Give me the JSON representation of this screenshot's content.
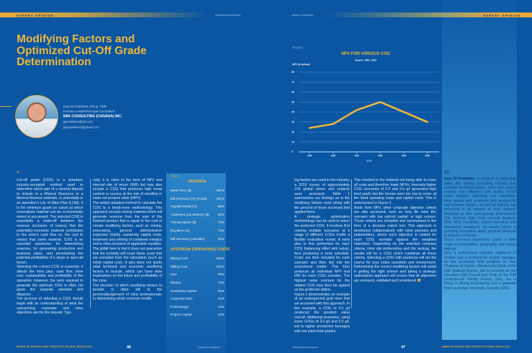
{
  "left_page": {
    "section_label": "EXPERT OPINION",
    "running_head": "Global Business Reports",
    "title": "Modifying Factors and Optimized Cut-Off Grade Determination",
    "author": {
      "name_line": "Gary M Poxleitner, PEng, PMP",
      "role": "Practice Leader/Principal Consultant",
      "company": "SRK CONSULTING (CANADA) INC.",
      "email1": "gpoxleitner@srk.com",
      "email2": "gmpoxleitner@gmail.com"
    },
    "quote_mark": "“",
    "col1": "Cut-off grade (COG) is a standard, industry-accepted method used to determine which part of a mineral deposit to include in a Mineral Resource or a Mineral Reserve estimate, or potentially in an operation's Life of Mine Plan (LOM). It is the minimum grade (or value) at which mineralized material can be economically mined or processed. The selected COG is essentially a trade-off between the revenue (inclusive of losses) that the potentially-economic material contributes to the mine's cash flow vs. the cost to extract that same material. COG is an essential parameter for determining reserves, for generating production and business plans, and ascertaining the potential profitability of a stope or open-pit bench.",
    "col1b": "Selecting the correct COG is essential. It affects the mine plan, cash flow, mine cost, sustainability and profitability of the operation. However, the work required to generate the optimum COG is often not given the requisite attention and diligence.",
    "col1c": "The process of selecting a COG should begin with an understanding of what the overarching corporate and mine objectives are for the deposit. Typi-",
    "col2a": "cally, it is value in the form of NPV and internal rate of return (IRR) but may also include a COG that produces high metal content or ounces at the risk of resulting in lower net present value (NPV).",
    "col2b": "The widely-adopted method to calculate the COG is a break-even methodology. This approach accepts mining material which will generate revenue from the sale of the finished product that is equal to the cost of certain modifying factors, such as mining, processing, general administrative expenses (G&A), sustaining capital costs, treatment and refining of contained metal(s) and is often inclusive of applicable royalties. The pitfall here is that it does not guarantee that the orebody will cover those costs that are excluded from the calculation (such as initial capital cost). It also does not clarify what technical and economic modifying factors to include, which can have wide implications on the future and profitability of the mine.",
    "col2c": "The decision of which modifying factors to include is often left to the personal/judgement of mine professionals. In determining which common modify-",
    "table": {
      "label": "TABLE 1",
      "revenue_header": "REVENUE",
      "revenue_rows": [
        {
          "item": "Metal Price ($)",
          "value": "100%"
        },
        {
          "item": "Mill Recovery (%) (Fixed)",
          "value": "100%"
        },
        {
          "item": "Payable Metal (%)",
          "value": "85%"
        },
        {
          "item": "Treatment and Refinery ($)",
          "value": "80%"
        },
        {
          "item": "Transportation ($)",
          "value": "75%"
        },
        {
          "item": "Royalties (%)",
          "value": "75%"
        },
        {
          "item": "Mill Recovery (Variable)",
          "value": "20%"
        }
      ],
      "costs_header": "UPSTREAM (OPERATING) COSTS",
      "costs_rows": [
        {
          "item": "Mining Cost",
          "value": "100%"
        },
        {
          "item": "Milling Cost",
          "value": "100%"
        },
        {
          "item": "G&A",
          "value": "90%"
        },
        {
          "item": "Dilution",
          "value": "70%"
        },
        {
          "item": "Sustaining Capital",
          "value": "55%"
        },
        {
          "item": "Corporate G&A",
          "value": "25%"
        },
        {
          "item": "Profit Margin",
          "value": "10%"
        },
        {
          "item": "Project Capital",
          "value": "10%"
        }
      ]
    },
    "footer": "MINING IN ONTARIO AND TORONTO'S GLOBAL REACH 2020",
    "page_number": "46",
    "footer_right": "Industry Explorations"
  },
  "right_page": {
    "running_head": "Industry Explorations",
    "section_label": "EXPERT OPINION",
    "figure_label": "FIGURE 1",
    "col4a": "ing factors are used in the industry, a 2019 survey of approximately 100 global mines and projects were accessed. Table 1 summarizes our findings as to the modifying factors used along with the percent of those surveyed that applied them.",
    "col4b": "A strategic optimization methodology can be used to select the preferred COG. It involves first running multiple scenarios at a range of different COGs inside a flexible evaluation model. A mine plan is first performed for each COG (balancing effort with value), thus producing a mine schedule. Costs are then included for each scenario and then fed into the economical model. This then produces an individual NPV and IRR for each COG scenario. The highest value scenario for the related COG may then be agreed as the preferred option.",
    "col4c": "Figure 1 demonstrates an example of an underground gold mine that we accessed with this approach. In this example, a COG of 4.5 g/t produced the greatest value overall. Additional scenarios, using lower COGs of 3.0 g/t and 3.5 g/t, led to higher production tonnages with low plant feed grades.",
    "col5a": "This resulted in the material not being able to cover all costs and therefore lower NPVs. Inversely higher COG scenarios of 5.0 and 5.5 g/t generated high feed grade but the tonnes were too low to cover all the fixed operating costs and capital costs. This is summarized in Figure 1.",
    "col5b": "Aside from NPV, other corporate objective criteria are also accessed, such as long life mine life, scenario with low upfront capital, or high ounces. These criteria are compiled and summarized in the form of a decision matrix tool. This approach is developed collaboratively with mine planners and stakeholders, where each objective is ranked for each COG scenario against the weighted objectives. Depending on the selected company criteria, mine site preferences and the ranking, the results will be a COG which combines all these criteria. Selecting a COG with prudence will set the course for your entire operation and environment. Determining the correct modifying factors will assist in getting the right answer and taking a strategic optimization approach will ensure that all objectives are reviewed, validated and considered.",
    "bio": {
      "tag": "BIO",
      "name": "Gary M Poxleitner",
      "p1": " is involved in leadership within the mining consulting industry and provides technical advice, mine and project reviews, due diligence and audits, cut-off grade analysis, operating cost estimation, mine design and economic and productivity improvement studies, as well as training and mentoring in all aspects of mine orebody extraction in the underground environment. This involves high level concept projects, PEA, PFS, Feasibility, project execution and operational assistance. He assists clients in providing innovative albeit practical solutions to complex problems.",
      "p2": "Gary's technical experience covers a wide range of commodities, geographic and mining settings.",
      "p3": "Gary a professional engineer registered in Ontario and a professional project manager, he has previously held positions as Vice Chairman of Camiro, Membership Chair of the CIM Sudbury Branch, and is currently on the Canadian CIM Council and Chair of the CIM Underground Mining Society. Gary has a P.Eng in Mining Engineering and a graduate from Laurentian University, Canada (1991)."
    },
    "footer_left": "Global Business Reports",
    "page_number": "47",
    "footer": "MINING IN ONTARIO AND TORONTO'S GLOBAL REACH 2020"
  },
  "colors": {
    "background": "#0a56a2",
    "accent_gold": "#f2b73a",
    "bio_panel": "#54aee4"
  },
  "chart_data": {
    "type": "line",
    "title": "NPV FOR VARIOUS COG",
    "subtitle": "Source: SRK, 2020",
    "ylabel": "NPV ($ million)",
    "xlabel": "COG",
    "categories": [
      "3.00",
      "3.50",
      "4.00",
      "4.50",
      "5.00",
      "5.50"
    ],
    "values": [
      24,
      28,
      42,
      50,
      40,
      30
    ],
    "ylim": [
      0,
      80
    ],
    "yticks": [
      0,
      10,
      20,
      30,
      40,
      50,
      60,
      70,
      80
    ],
    "grid": true,
    "line_color": "#f2b73a"
  }
}
